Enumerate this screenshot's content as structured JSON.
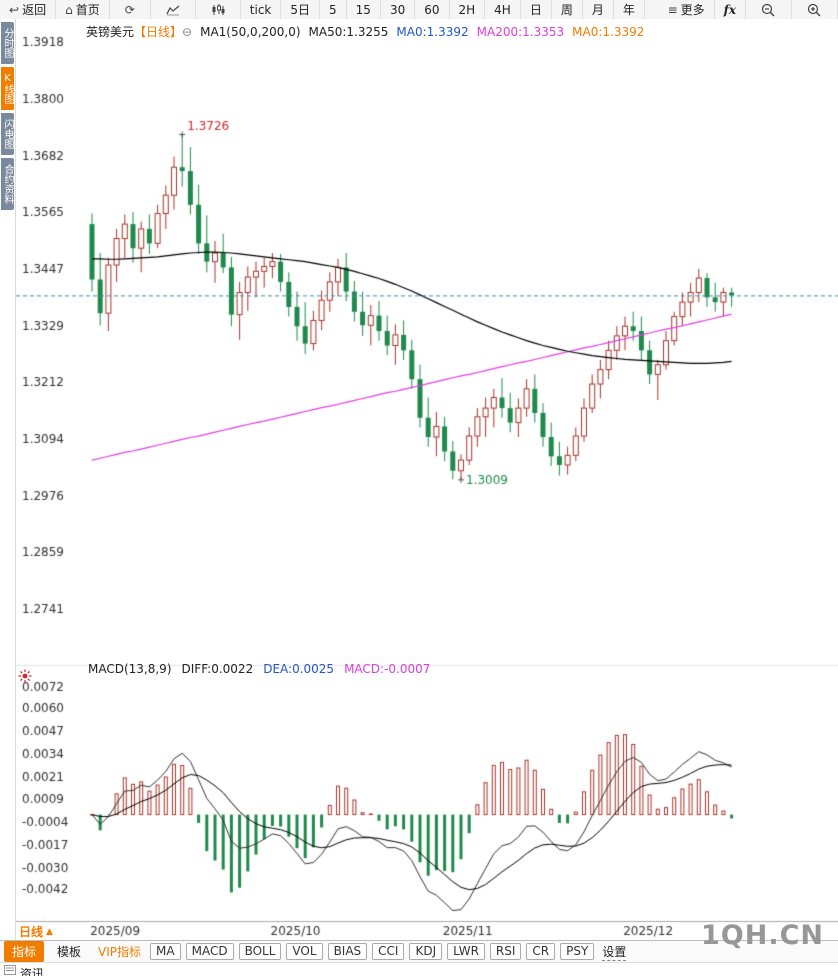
{
  "topbar": {
    "back": "返回",
    "home": "首页",
    "tick": "tick",
    "day5": "5日",
    "min5": "5",
    "min15": "15",
    "min30": "30",
    "min60": "60",
    "h2": "2H",
    "h4": "4H",
    "day": "日",
    "week": "周",
    "month": "月",
    "year": "年",
    "more": "更多",
    "fx": "fx"
  },
  "icons": {
    "back": "↩",
    "home": "⌂",
    "refresh": "⟳",
    "more": "≡",
    "collapse": "⊖",
    "triangle_up": "▲"
  },
  "sidebar": {
    "tabs": [
      "分时图",
      "K线图",
      "闪电图",
      "合约资料"
    ],
    "active_index": 1
  },
  "price_header": {
    "symbol": "英镑美元",
    "period": "【日线】",
    "ma_settings": "MA1(50,0,200,0)",
    "ma50": "MA50:1.3255",
    "ma0_blue": "MA0:1.3392",
    "ma200": "MA200:1.3353",
    "ma0_orange": "MA0:1.3392"
  },
  "macd_header": {
    "title": "MACD(13,8,9)",
    "diff": "DIFF:0.0022",
    "dea": "DEA:0.0025",
    "macd": "MACD:-0.0007"
  },
  "period_tab": "日线",
  "bottombar": {
    "tabs": [
      "指标",
      "模板",
      "VIP指标",
      "MA",
      "MACD",
      "BOLL",
      "VOL",
      "BIAS",
      "CCI",
      "KDJ",
      "LWR",
      "RSI",
      "CR",
      "PSY",
      "设置"
    ]
  },
  "news_tab": "资讯",
  "watermark": "1QH.CN",
  "chart_data": {
    "type": "candlestick",
    "symbol": "英镑美元",
    "period": "日线",
    "price_axis": {
      "top": 1.3918,
      "bottom": 1.2741,
      "ticks": [
        "1.3918",
        "1.3800",
        "1.3682",
        "1.3565",
        "1.3447",
        "1.3329",
        "1.3212",
        "1.3094",
        "1.2976",
        "1.2859",
        "1.2741"
      ]
    },
    "x_labels": [
      "2025/09",
      "2025/10",
      "2025/11",
      "2025/12"
    ],
    "x_label_indices": [
      1,
      23,
      44,
      66
    ],
    "last_price": 1.3392,
    "annotations": {
      "high": {
        "index": 11,
        "price": 1.3726,
        "label": "1.3726"
      },
      "low": {
        "index": 45,
        "price": 1.3009,
        "label": "1.3009"
      }
    },
    "candles": [
      [
        1.354,
        1.3562,
        1.34,
        1.3425
      ],
      [
        1.3425,
        1.348,
        1.333,
        1.3355
      ],
      [
        1.3355,
        1.347,
        1.3318,
        1.3455
      ],
      [
        1.3455,
        1.353,
        1.342,
        1.351
      ],
      [
        1.351,
        1.356,
        1.347,
        1.354
      ],
      [
        1.354,
        1.3565,
        1.346,
        1.349
      ],
      [
        1.349,
        1.3545,
        1.344,
        1.353
      ],
      [
        1.353,
        1.356,
        1.3478,
        1.35
      ],
      [
        1.35,
        1.358,
        1.349,
        1.3562
      ],
      [
        1.3562,
        1.362,
        1.353,
        1.36
      ],
      [
        1.36,
        1.368,
        1.357,
        1.3658
      ],
      [
        1.3658,
        1.3726,
        1.3618,
        1.365
      ],
      [
        1.365,
        1.37,
        1.356,
        1.358
      ],
      [
        1.358,
        1.3622,
        1.3478,
        1.35
      ],
      [
        1.35,
        1.3558,
        1.344,
        1.3462
      ],
      [
        1.3462,
        1.3505,
        1.3418,
        1.348
      ],
      [
        1.348,
        1.352,
        1.3438,
        1.345
      ],
      [
        1.345,
        1.3472,
        1.3328,
        1.3352
      ],
      [
        1.3352,
        1.342,
        1.33,
        1.3398
      ],
      [
        1.3398,
        1.3452,
        1.336,
        1.343
      ],
      [
        1.343,
        1.3462,
        1.3388,
        1.3442
      ],
      [
        1.3442,
        1.347,
        1.3408,
        1.3452
      ],
      [
        1.3452,
        1.348,
        1.3428,
        1.3462
      ],
      [
        1.3462,
        1.3478,
        1.34,
        1.342
      ],
      [
        1.342,
        1.344,
        1.3348,
        1.3368
      ],
      [
        1.3368,
        1.34,
        1.3298,
        1.3328
      ],
      [
        1.3328,
        1.3378,
        1.327,
        1.3292
      ],
      [
        1.3292,
        1.336,
        1.3278,
        1.334
      ],
      [
        1.334,
        1.3402,
        1.332,
        1.3382
      ],
      [
        1.3382,
        1.344,
        1.3358,
        1.342
      ],
      [
        1.342,
        1.3468,
        1.339,
        1.345
      ],
      [
        1.345,
        1.348,
        1.338,
        1.34
      ],
      [
        1.34,
        1.3422,
        1.3338,
        1.3358
      ],
      [
        1.3358,
        1.34,
        1.3308,
        1.333
      ],
      [
        1.333,
        1.3372,
        1.3288,
        1.335
      ],
      [
        1.335,
        1.338,
        1.3298,
        1.3318
      ],
      [
        1.3318,
        1.335,
        1.3268,
        1.3288
      ],
      [
        1.3288,
        1.3332,
        1.3248,
        1.331
      ],
      [
        1.331,
        1.334,
        1.3258,
        1.3278
      ],
      [
        1.3278,
        1.33,
        1.3198,
        1.3218
      ],
      [
        1.3218,
        1.3248,
        1.3118,
        1.3138
      ],
      [
        1.3138,
        1.318,
        1.3078,
        1.3098
      ],
      [
        1.3098,
        1.315,
        1.3058,
        1.312
      ],
      [
        1.312,
        1.314,
        1.3048,
        1.3068
      ],
      [
        1.3068,
        1.309,
        1.301,
        1.3028
      ],
      [
        1.3028,
        1.3062,
        1.3009,
        1.305
      ],
      [
        1.305,
        1.3118,
        1.304,
        1.31
      ],
      [
        1.31,
        1.3158,
        1.3078,
        1.314
      ],
      [
        1.314,
        1.318,
        1.3098,
        1.3158
      ],
      [
        1.3158,
        1.3198,
        1.3118,
        1.318
      ],
      [
        1.318,
        1.322,
        1.3138,
        1.3158
      ],
      [
        1.3158,
        1.319,
        1.3108,
        1.3128
      ],
      [
        1.3128,
        1.3178,
        1.3098,
        1.3158
      ],
      [
        1.3158,
        1.3218,
        1.314,
        1.3198
      ],
      [
        1.3198,
        1.3228,
        1.3128,
        1.3148
      ],
      [
        1.3148,
        1.3168,
        1.3078,
        1.3098
      ],
      [
        1.3098,
        1.3128,
        1.3038,
        1.3058
      ],
      [
        1.3058,
        1.3088,
        1.3018,
        1.304
      ],
      [
        1.304,
        1.3078,
        1.302,
        1.306
      ],
      [
        1.306,
        1.3118,
        1.3048,
        1.31
      ],
      [
        1.31,
        1.3178,
        1.3088,
        1.3158
      ],
      [
        1.3158,
        1.3228,
        1.3148,
        1.3208
      ],
      [
        1.3208,
        1.3258,
        1.3178,
        1.3238
      ],
      [
        1.3238,
        1.3298,
        1.3218,
        1.3278
      ],
      [
        1.3278,
        1.3328,
        1.3258,
        1.3308
      ],
      [
        1.3308,
        1.3348,
        1.3278,
        1.3328
      ],
      [
        1.3328,
        1.3358,
        1.3298,
        1.3318
      ],
      [
        1.3318,
        1.3348,
        1.3258,
        1.3278
      ],
      [
        1.3278,
        1.3298,
        1.3208,
        1.3228
      ],
      [
        1.3228,
        1.3258,
        1.3175,
        1.3248
      ],
      [
        1.3248,
        1.3318,
        1.3238,
        1.3298
      ],
      [
        1.3298,
        1.3358,
        1.3288,
        1.3348
      ],
      [
        1.3348,
        1.3398,
        1.3328,
        1.3378
      ],
      [
        1.3378,
        1.3418,
        1.3348,
        1.3398
      ],
      [
        1.3398,
        1.3447,
        1.3378,
        1.3428
      ],
      [
        1.3428,
        1.3438,
        1.3368,
        1.3388
      ],
      [
        1.3388,
        1.3418,
        1.3358,
        1.3378
      ],
      [
        1.3378,
        1.3408,
        1.3348,
        1.3398
      ],
      [
        1.3398,
        1.3408,
        1.3368,
        1.3392
      ]
    ],
    "ma50": [
      1.3468,
      1.3468,
      1.3467,
      1.3467,
      1.3468,
      1.3469,
      1.347,
      1.3471,
      1.3472,
      1.3474,
      1.3476,
      1.3478,
      1.348,
      1.3481,
      1.3482,
      1.3482,
      1.3481,
      1.348,
      1.3478,
      1.3476,
      1.3474,
      1.3472,
      1.347,
      1.3468,
      1.3466,
      1.3464,
      1.3462,
      1.3459,
      1.3456,
      1.3453,
      1.345,
      1.3446,
      1.3442,
      1.3437,
      1.3432,
      1.3427,
      1.3421,
      1.3415,
      1.3408,
      1.3401,
      1.3393,
      1.3385,
      1.3377,
      1.3369,
      1.3361,
      1.3353,
      1.3345,
      1.3337,
      1.333,
      1.3323,
      1.3316,
      1.331,
      1.3304,
      1.3298,
      1.3293,
      1.3288,
      1.3284,
      1.328,
      1.3276,
      1.3273,
      1.327,
      1.3267,
      1.3265,
      1.3263,
      1.3261,
      1.3259,
      1.3258,
      1.3257,
      1.3256,
      1.3255,
      1.3254,
      1.3253,
      1.3252,
      1.3251,
      1.3251,
      1.3251,
      1.3252,
      1.3253,
      1.3255
    ],
    "ma200": [
      1.305,
      1.3054,
      1.3058,
      1.3062,
      1.3066,
      1.3069,
      1.3073,
      1.3077,
      1.3081,
      1.3085,
      1.3089,
      1.3093,
      1.3097,
      1.31,
      1.3104,
      1.3108,
      1.3112,
      1.3116,
      1.312,
      1.3124,
      1.3128,
      1.3131,
      1.3135,
      1.3139,
      1.3143,
      1.3147,
      1.3151,
      1.3155,
      1.3159,
      1.3162,
      1.3166,
      1.317,
      1.3174,
      1.3178,
      1.3182,
      1.3186,
      1.319,
      1.3193,
      1.3197,
      1.3201,
      1.3205,
      1.3209,
      1.3213,
      1.3217,
      1.3221,
      1.3225,
      1.3228,
      1.3232,
      1.3236,
      1.324,
      1.3244,
      1.3248,
      1.3252,
      1.3255,
      1.3259,
      1.3263,
      1.3267,
      1.3271,
      1.3275,
      1.3279,
      1.3283,
      1.3286,
      1.329,
      1.3294,
      1.3298,
      1.3302,
      1.3306,
      1.331,
      1.3314,
      1.3318,
      1.3322,
      1.3325,
      1.3329,
      1.3333,
      1.3337,
      1.3341,
      1.3345,
      1.3349,
      1.3353
    ],
    "macd": {
      "params": "(13,8,9)",
      "fast": 8,
      "slow": 13,
      "signal": 9,
      "axis": {
        "top": 0.0072,
        "bottom": -0.0042,
        "ticks": [
          "0.0072",
          "0.0060",
          "0.0047",
          "0.0034",
          "0.0021",
          "0.0009",
          "-0.0004",
          "-0.0017",
          "-0.0030",
          "-0.0042"
        ]
      }
    },
    "colors": {
      "up": "#a8342c",
      "down": "#1f8a4c",
      "ma50": "#000000",
      "ma200": "#e43ce4",
      "last_price_line": "#3e8fae",
      "macd_diff": "#333333",
      "macd_dea": "#000000",
      "annotation_high": "#d02a2a",
      "annotation_low": "#1f8a4c",
      "axis_text": "#333333",
      "accent": "#f07c00"
    }
  }
}
